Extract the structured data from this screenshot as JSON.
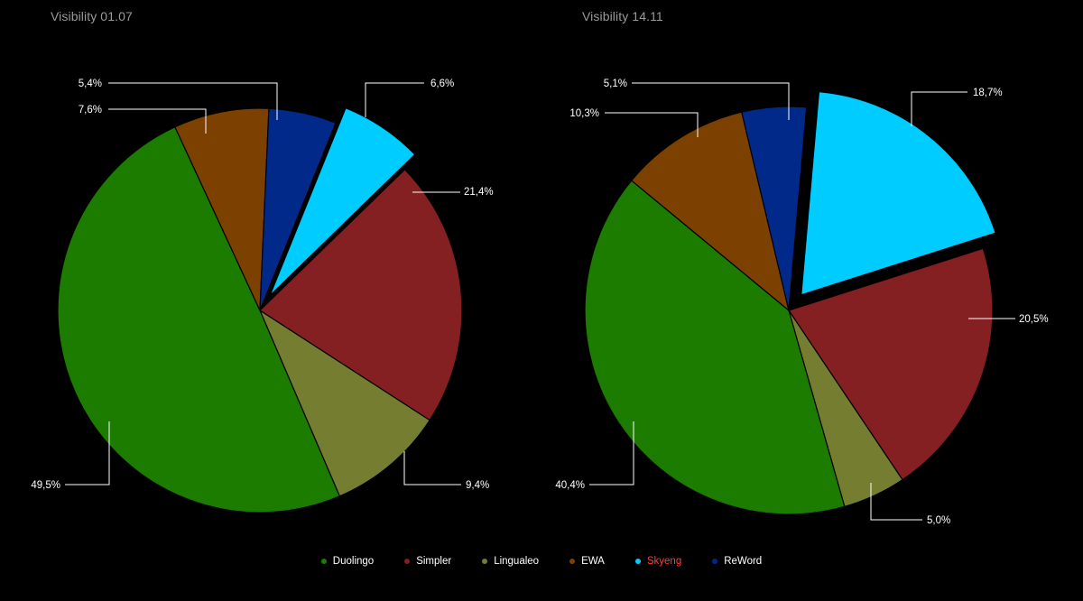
{
  "chart_data": [
    {
      "type": "pie",
      "title": "Visibility 01.07",
      "slices": [
        {
          "name": "Skyeng",
          "value": 6.6,
          "label": "6,6%",
          "color": "#00ccff",
          "exploded": true
        },
        {
          "name": "Simpler",
          "value": 21.4,
          "label": "21,4%",
          "color": "#841f22"
        },
        {
          "name": "Lingualeo",
          "value": 9.4,
          "label": "9,4%",
          "color": "#757d31"
        },
        {
          "name": "Duolingo",
          "value": 49.5,
          "label": "49,5%",
          "color": "#1b7c00"
        },
        {
          "name": "EWA",
          "value": 7.6,
          "label": "7,6%",
          "color": "#7c4100"
        },
        {
          "name": "ReWord",
          "value": 5.4,
          "label": "5,4%",
          "color": "#00298a"
        }
      ]
    },
    {
      "type": "pie",
      "title": "Visibility 14.11",
      "slices": [
        {
          "name": "Skyeng",
          "value": 18.7,
          "label": "18,7%",
          "color": "#00ccff",
          "exploded": true
        },
        {
          "name": "Simpler",
          "value": 20.5,
          "label": "20,5%",
          "color": "#841f22"
        },
        {
          "name": "Lingualeo",
          "value": 5.0,
          "label": "5,0%",
          "color": "#757d31"
        },
        {
          "name": "Duolingo",
          "value": 40.4,
          "label": "40,4%",
          "color": "#1b7c00"
        },
        {
          "name": "EWA",
          "value": 10.3,
          "label": "10,3%",
          "color": "#7c4100"
        },
        {
          "name": "ReWord",
          "value": 5.1,
          "label": "5,1%",
          "color": "#00298a"
        }
      ]
    }
  ],
  "legend": [
    {
      "name": "Duolingo",
      "color": "#1b7c00",
      "text_color": "#ffffff"
    },
    {
      "name": "Simpler",
      "color": "#841f22",
      "text_color": "#ffffff"
    },
    {
      "name": "Lingualeo",
      "color": "#757d31",
      "text_color": "#ffffff"
    },
    {
      "name": "EWA",
      "color": "#7c4100",
      "text_color": "#ffffff"
    },
    {
      "name": "Skyeng",
      "color": "#00ccff",
      "text_color": "#ff3d3d"
    },
    {
      "name": "ReWord",
      "color": "#00298a",
      "text_color": "#ffffff"
    }
  ]
}
